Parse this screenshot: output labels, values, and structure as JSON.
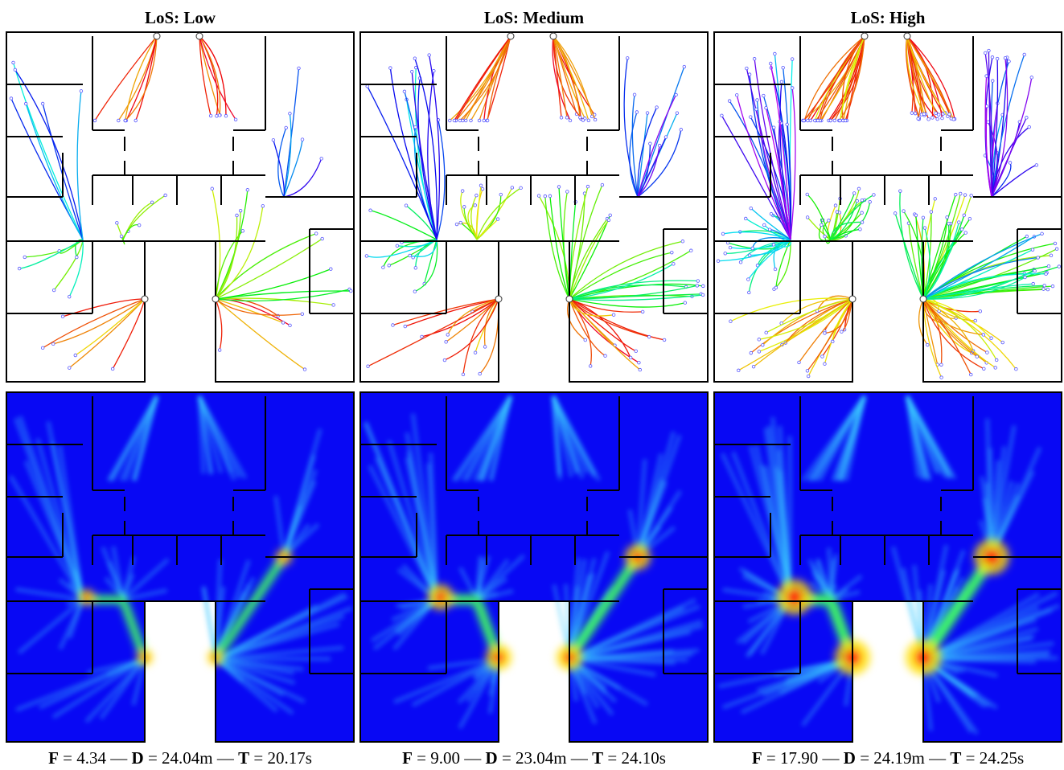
{
  "panels": [
    {
      "title": "LoS: Low",
      "caption": [
        {
          "bold": "F",
          "plain": " = 4.34 — "
        },
        {
          "bold": "D",
          "plain": " = 24.04m — "
        },
        {
          "bold": "T",
          "plain": " = 20.17s"
        }
      ]
    },
    {
      "title": "LoS: Medium",
      "caption": [
        {
          "bold": "F",
          "plain": " = 9.00 — "
        },
        {
          "bold": "D",
          "plain": " = 23.04m — "
        },
        {
          "bold": "T",
          "plain": " = 24.10s"
        }
      ]
    },
    {
      "title": "LoS: High",
      "caption": [
        {
          "bold": "F",
          "plain": " = 17.90 — "
        },
        {
          "bold": "D",
          "plain": " = 24.19m — "
        },
        {
          "bold": "T",
          "plain": " = 24.25s"
        }
      ]
    }
  ]
}
